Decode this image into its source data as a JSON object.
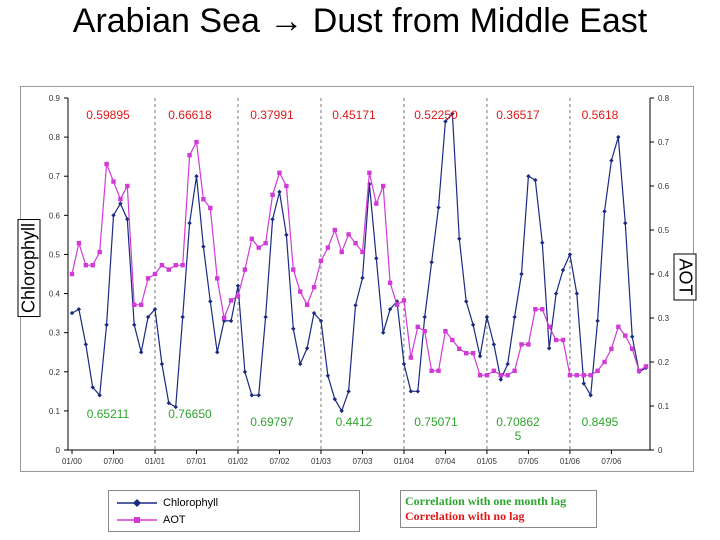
{
  "title": "Arabian Sea → Dust from Middle East",
  "title_arrow_icon": "right-arrow-icon",
  "colors": {
    "chlorophyll": "#1a2a80",
    "aot": "#d23ad8",
    "corr_lag": "#2ea52e",
    "corr_nolag": "#e01818"
  },
  "legend": {
    "chlorophyll": "Chlorophyll",
    "aot": "AOT"
  },
  "correlation_legend": {
    "lag": "Correlation with one month lag",
    "nolag": "Correlation with no lag"
  },
  "chart_data": {
    "type": "line",
    "title": "",
    "ylabel": "Chlorophyll",
    "y2label": "AOT",
    "ylim": [
      0,
      0.9
    ],
    "y2lim": [
      0,
      0.8
    ],
    "yticks": [
      "0",
      "0.1",
      "0.2",
      "0.3",
      "0.4",
      "0.5",
      "0.6",
      "0.7",
      "0.8",
      "0.9"
    ],
    "y2ticks": [
      "0",
      "0.1",
      "0.2",
      "0.3",
      "0.4",
      "0.5",
      "0.6",
      "0.7",
      "0.8"
    ],
    "xticks": [
      "01/00",
      "07/00",
      "01/01",
      "07/01",
      "01/02",
      "07/02",
      "01/03",
      "07/03",
      "01/04",
      "07/04",
      "01/05",
      "07/05",
      "01/06",
      "07/06"
    ],
    "grid": false,
    "legend_position": "bottom",
    "series": [
      {
        "name": "Chlorophyll",
        "axis": "left",
        "values": [
          0.35,
          0.36,
          0.27,
          0.16,
          0.14,
          0.32,
          0.6,
          0.63,
          0.59,
          0.32,
          0.25,
          0.34,
          0.36,
          0.22,
          0.12,
          0.11,
          0.34,
          0.58,
          0.7,
          0.52,
          0.38,
          0.25,
          0.33,
          0.33,
          0.42,
          0.2,
          0.14,
          0.14,
          0.34,
          0.59,
          0.66,
          0.55,
          0.31,
          0.22,
          0.26,
          0.35,
          0.33,
          0.19,
          0.13,
          0.1,
          0.15,
          0.37,
          0.44,
          0.68,
          0.49,
          0.3,
          0.36,
          0.38,
          0.22,
          0.15,
          0.15,
          0.34,
          0.48,
          0.62,
          0.84,
          0.86,
          0.54,
          0.38,
          0.32,
          0.24,
          0.34,
          0.27,
          0.18,
          0.22,
          0.34,
          0.45,
          0.7,
          0.69,
          0.53,
          0.26,
          0.4,
          0.46,
          0.5,
          0.4,
          0.17,
          0.14,
          0.33,
          0.61,
          0.74,
          0.8,
          0.58,
          0.29,
          0.2,
          0.21
        ]
      },
      {
        "name": "AOT",
        "axis": "right",
        "values": [
          0.4,
          0.47,
          0.42,
          0.42,
          0.45,
          0.65,
          0.61,
          0.57,
          0.6,
          0.33,
          0.33,
          0.39,
          0.4,
          0.42,
          0.41,
          0.42,
          0.42,
          0.67,
          0.7,
          0.57,
          0.55,
          0.39,
          0.3,
          0.34,
          0.35,
          0.41,
          0.48,
          0.46,
          0.47,
          0.58,
          0.63,
          0.6,
          0.41,
          0.36,
          0.33,
          0.37,
          0.43,
          0.46,
          0.5,
          0.45,
          0.49,
          0.47,
          0.45,
          0.63,
          0.56,
          0.6,
          0.38,
          0.33,
          0.34,
          0.21,
          0.28,
          0.27,
          0.18,
          0.18,
          0.27,
          0.25,
          0.23,
          0.22,
          0.22,
          0.17,
          0.17,
          0.18,
          0.17,
          0.17,
          0.18,
          0.24,
          0.24,
          0.32,
          0.32,
          0.28,
          0.25,
          0.25,
          0.17,
          0.17,
          0.17,
          0.17,
          0.18,
          0.2,
          0.23,
          0.28,
          0.26,
          0.23,
          0.18,
          0.19
        ]
      }
    ],
    "annotations_top": [
      {
        "text": "0.59895",
        "color": "#e01818"
      },
      {
        "text": "0.66618",
        "color": "#e01818"
      },
      {
        "text": "0.37991",
        "color": "#e01818"
      },
      {
        "text": "0.45171",
        "color": "#e01818"
      },
      {
        "text": "0.52250",
        "color": "#e01818"
      },
      {
        "text": "0.36517",
        "color": "#e01818"
      },
      {
        "text": "0.5618",
        "color": "#e01818"
      }
    ],
    "annotations_bottom": [
      {
        "text": "0.65211",
        "color": "#2ea52e"
      },
      {
        "text": "0.76650",
        "color": "#2ea52e"
      },
      {
        "text": "0.69797",
        "color": "#2ea52e"
      },
      {
        "text": "0.4412",
        "color": "#2ea52e"
      },
      {
        "text": "0.75071",
        "color": "#2ea52e"
      },
      {
        "text": "0.70862\n5",
        "color": "#2ea52e"
      },
      {
        "text": "0.8495",
        "color": "#2ea52e"
      }
    ]
  }
}
